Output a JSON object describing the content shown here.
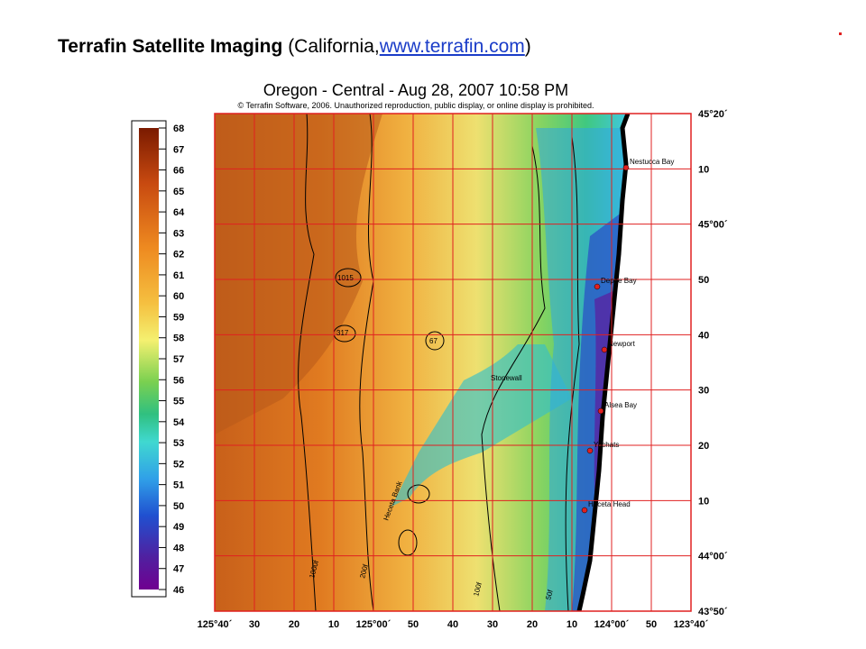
{
  "slide": {
    "title_bold": "Terrafin Satellite Imaging",
    "title_open": "(California,",
    "link_text": "www.terrafin.com",
    "title_close": ")",
    "dot_color": "#e02020"
  },
  "map": {
    "title": "Oregon - Central - Aug 28, 2007 10:58 PM",
    "copyright": "© Terrafin Software, 2006.  Unauthorized reproduction, public display, or online display is prohibited.",
    "colorbar_ticks": [
      "68",
      "67",
      "66",
      "65",
      "64",
      "63",
      "62",
      "61",
      "60",
      "59",
      "58",
      "57",
      "56",
      "55",
      "54",
      "53",
      "52",
      "51",
      "50",
      "49",
      "48",
      "47",
      "46"
    ],
    "latitude_labels": [
      "45°20´",
      "10",
      "45°00´",
      "50",
      "40",
      "30",
      "20",
      "10",
      "44°00´",
      "43°50´"
    ],
    "longitude_labels": [
      "125°40´",
      "30",
      "20",
      "10",
      "125°00´",
      "50",
      "40",
      "30",
      "20",
      "10",
      "124°00´",
      "50",
      "123°40´"
    ],
    "places": [
      "Nestucca Bay",
      "Depoe Bay",
      "Newport",
      "Alsea Bay",
      "Yachats",
      "Heceta Head"
    ],
    "features": [
      "Stonewall",
      "Heceta Bank"
    ],
    "contour_labels": [
      "1015",
      "317",
      "67",
      "1000f",
      "200f",
      "100f",
      "50f"
    ],
    "grid_color": "#e02020",
    "place_color": "#e02020",
    "land_color": "#ffffff",
    "coast_color": "#000000"
  }
}
